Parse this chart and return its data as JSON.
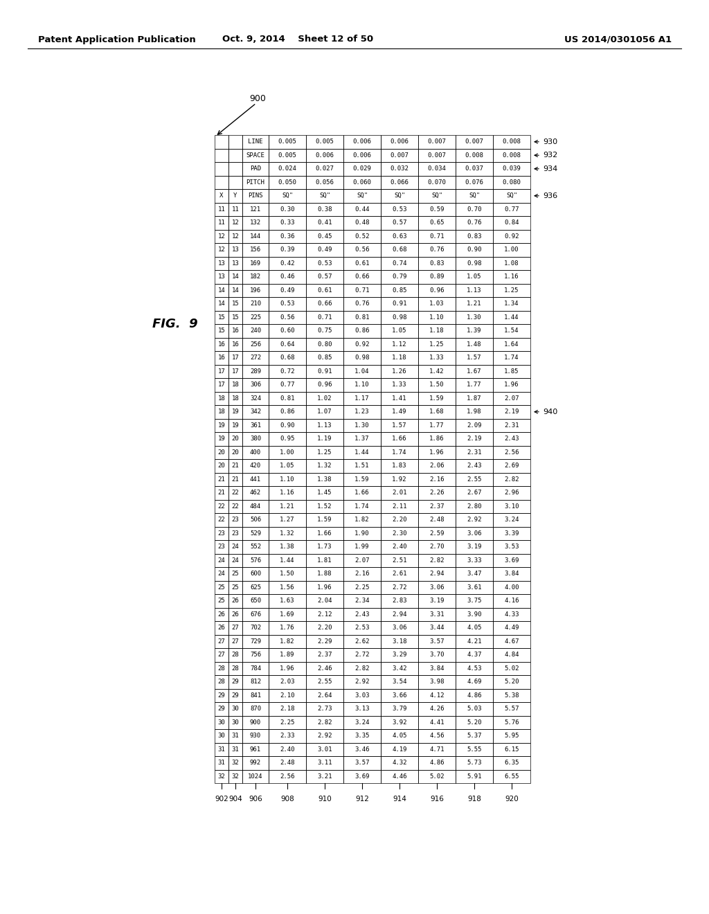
{
  "title_left": "Patent Application Publication",
  "title_center": "Oct. 9, 2014    Sheet 12 of 50",
  "title_right": "US 2014/0301056 A1",
  "fig_label": "FIG.  9",
  "label_900": "900",
  "label_930": "930",
  "label_932": "932",
  "label_934": "934",
  "label_936": "936",
  "label_940": "940",
  "header_rows": [
    [
      "",
      "",
      "LINE",
      "0.005",
      "0.005",
      "0.006",
      "0.006",
      "0.007",
      "0.007",
      "0.008"
    ],
    [
      "",
      "",
      "SPACE",
      "0.005",
      "0.006",
      "0.006",
      "0.007",
      "0.007",
      "0.008",
      "0.008"
    ],
    [
      "",
      "",
      "PAD",
      "0.024",
      "0.027",
      "0.029",
      "0.032",
      "0.034",
      "0.037",
      "0.039"
    ],
    [
      "",
      "",
      "PITCH",
      "0.050",
      "0.056",
      "0.060",
      "0.066",
      "0.070",
      "0.076",
      "0.080"
    ]
  ],
  "col_header": [
    "X",
    "Y",
    "PINS",
    "SQ\"",
    "SQ\"",
    "SQ\"",
    "SQ\"",
    "SQ\"",
    "SQ\"",
    "SQ\""
  ],
  "data_rows": [
    [
      "11",
      "11",
      "121",
      "0.30",
      "0.38",
      "0.44",
      "0.53",
      "0.59",
      "0.70",
      "0.77"
    ],
    [
      "11",
      "12",
      "132",
      "0.33",
      "0.41",
      "0.48",
      "0.57",
      "0.65",
      "0.76",
      "0.84"
    ],
    [
      "12",
      "12",
      "144",
      "0.36",
      "0.45",
      "0.52",
      "0.63",
      "0.71",
      "0.83",
      "0.92"
    ],
    [
      "12",
      "13",
      "156",
      "0.39",
      "0.49",
      "0.56",
      "0.68",
      "0.76",
      "0.90",
      "1.00"
    ],
    [
      "13",
      "13",
      "169",
      "0.42",
      "0.53",
      "0.61",
      "0.74",
      "0.83",
      "0.98",
      "1.08"
    ],
    [
      "13",
      "14",
      "182",
      "0.46",
      "0.57",
      "0.66",
      "0.79",
      "0.89",
      "1.05",
      "1.16"
    ],
    [
      "14",
      "14",
      "196",
      "0.49",
      "0.61",
      "0.71",
      "0.85",
      "0.96",
      "1.13",
      "1.25"
    ],
    [
      "14",
      "15",
      "210",
      "0.53",
      "0.66",
      "0.76",
      "0.91",
      "1.03",
      "1.21",
      "1.34"
    ],
    [
      "15",
      "15",
      "225",
      "0.56",
      "0.71",
      "0.81",
      "0.98",
      "1.10",
      "1.30",
      "1.44"
    ],
    [
      "15",
      "16",
      "240",
      "0.60",
      "0.75",
      "0.86",
      "1.05",
      "1.18",
      "1.39",
      "1.54"
    ],
    [
      "16",
      "16",
      "256",
      "0.64",
      "0.80",
      "0.92",
      "1.12",
      "1.25",
      "1.48",
      "1.64"
    ],
    [
      "16",
      "17",
      "272",
      "0.68",
      "0.85",
      "0.98",
      "1.18",
      "1.33",
      "1.57",
      "1.74"
    ],
    [
      "17",
      "17",
      "289",
      "0.72",
      "0.91",
      "1.04",
      "1.26",
      "1.42",
      "1.67",
      "1.85"
    ],
    [
      "17",
      "18",
      "306",
      "0.77",
      "0.96",
      "1.10",
      "1.33",
      "1.50",
      "1.77",
      "1.96"
    ],
    [
      "18",
      "18",
      "324",
      "0.81",
      "1.02",
      "1.17",
      "1.41",
      "1.59",
      "1.87",
      "2.07"
    ],
    [
      "18",
      "19",
      "342",
      "0.86",
      "1.07",
      "1.23",
      "1.49",
      "1.68",
      "1.98",
      "2.19"
    ],
    [
      "19",
      "19",
      "361",
      "0.90",
      "1.13",
      "1.30",
      "1.57",
      "1.77",
      "2.09",
      "2.31"
    ],
    [
      "19",
      "20",
      "380",
      "0.95",
      "1.19",
      "1.37",
      "1.66",
      "1.86",
      "2.19",
      "2.43"
    ],
    [
      "20",
      "20",
      "400",
      "1.00",
      "1.25",
      "1.44",
      "1.74",
      "1.96",
      "2.31",
      "2.56"
    ],
    [
      "20",
      "21",
      "420",
      "1.05",
      "1.32",
      "1.51",
      "1.83",
      "2.06",
      "2.43",
      "2.69"
    ],
    [
      "21",
      "21",
      "441",
      "1.10",
      "1.38",
      "1.59",
      "1.92",
      "2.16",
      "2.55",
      "2.82"
    ],
    [
      "21",
      "22",
      "462",
      "1.16",
      "1.45",
      "1.66",
      "2.01",
      "2.26",
      "2.67",
      "2.96"
    ],
    [
      "22",
      "22",
      "484",
      "1.21",
      "1.52",
      "1.74",
      "2.11",
      "2.37",
      "2.80",
      "3.10"
    ],
    [
      "22",
      "23",
      "506",
      "1.27",
      "1.59",
      "1.82",
      "2.20",
      "2.48",
      "2.92",
      "3.24"
    ],
    [
      "23",
      "23",
      "529",
      "1.32",
      "1.66",
      "1.90",
      "2.30",
      "2.59",
      "3.06",
      "3.39"
    ],
    [
      "23",
      "24",
      "552",
      "1.38",
      "1.73",
      "1.99",
      "2.40",
      "2.70",
      "3.19",
      "3.53"
    ],
    [
      "24",
      "24",
      "576",
      "1.44",
      "1.81",
      "2.07",
      "2.51",
      "2.82",
      "3.33",
      "3.69"
    ],
    [
      "24",
      "25",
      "600",
      "1.50",
      "1.88",
      "2.16",
      "2.61",
      "2.94",
      "3.47",
      "3.84"
    ],
    [
      "25",
      "25",
      "625",
      "1.56",
      "1.96",
      "2.25",
      "2.72",
      "3.06",
      "3.61",
      "4.00"
    ],
    [
      "25",
      "26",
      "650",
      "1.63",
      "2.04",
      "2.34",
      "2.83",
      "3.19",
      "3.75",
      "4.16"
    ],
    [
      "26",
      "26",
      "676",
      "1.69",
      "2.12",
      "2.43",
      "2.94",
      "3.31",
      "3.90",
      "4.33"
    ],
    [
      "26",
      "27",
      "702",
      "1.76",
      "2.20",
      "2.53",
      "3.06",
      "3.44",
      "4.05",
      "4.49"
    ],
    [
      "27",
      "27",
      "729",
      "1.82",
      "2.29",
      "2.62",
      "3.18",
      "3.57",
      "4.21",
      "4.67"
    ],
    [
      "27",
      "28",
      "756",
      "1.89",
      "2.37",
      "2.72",
      "3.29",
      "3.70",
      "4.37",
      "4.84"
    ],
    [
      "28",
      "28",
      "784",
      "1.96",
      "2.46",
      "2.82",
      "3.42",
      "3.84",
      "4.53",
      "5.02"
    ],
    [
      "28",
      "29",
      "812",
      "2.03",
      "2.55",
      "2.92",
      "3.54",
      "3.98",
      "4.69",
      "5.20"
    ],
    [
      "29",
      "29",
      "841",
      "2.10",
      "2.64",
      "3.03",
      "3.66",
      "4.12",
      "4.86",
      "5.38"
    ],
    [
      "29",
      "30",
      "870",
      "2.18",
      "2.73",
      "3.13",
      "3.79",
      "4.26",
      "5.03",
      "5.57"
    ],
    [
      "30",
      "30",
      "900",
      "2.25",
      "2.82",
      "3.24",
      "3.92",
      "4.41",
      "5.20",
      "5.76"
    ],
    [
      "30",
      "31",
      "930",
      "2.33",
      "2.92",
      "3.35",
      "4.05",
      "4.56",
      "5.37",
      "5.95"
    ],
    [
      "31",
      "31",
      "961",
      "2.40",
      "3.01",
      "3.46",
      "4.19",
      "4.71",
      "5.55",
      "6.15"
    ],
    [
      "31",
      "32",
      "992",
      "2.48",
      "3.11",
      "3.57",
      "4.32",
      "4.86",
      "5.73",
      "6.35"
    ],
    [
      "32",
      "32",
      "1024",
      "2.56",
      "3.21",
      "3.69",
      "4.46",
      "5.02",
      "5.91",
      "6.55"
    ]
  ],
  "bottom_labels": [
    {
      "label": "902",
      "col": 0
    },
    {
      "label": "904",
      "col": 1
    },
    {
      "label": "906",
      "col": 2
    },
    {
      "label": "908",
      "col": 3
    },
    {
      "label": "910",
      "col": 4
    },
    {
      "label": "912",
      "col": 5
    },
    {
      "label": "914",
      "col": 6
    },
    {
      "label": "916",
      "col": 7
    },
    {
      "label": "918",
      "col": 8
    },
    {
      "label": "920",
      "col": 9
    }
  ]
}
